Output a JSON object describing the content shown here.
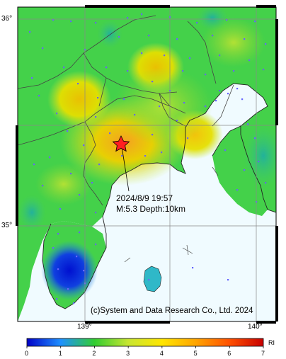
{
  "map": {
    "lat_labels": [
      "36°",
      "35°"
    ],
    "lon_labels": [
      "139°",
      "140°"
    ],
    "event": {
      "datetime": "2024/8/9 19:57",
      "details": "M:5.3 Depth:10km"
    },
    "copyright": "(c)System and Data Research Co., Ltd. 2024"
  },
  "legend": {
    "ticks": [
      "0",
      "1",
      "2",
      "3",
      "4",
      "5",
      "6",
      "7"
    ],
    "unit": "RI",
    "colors": [
      "#0000c8",
      "#1e90ff",
      "#32cd32",
      "#c8e632",
      "#ffe600",
      "#ffa500",
      "#ff5000",
      "#c80000"
    ]
  },
  "colors": {
    "sea": "#f0fbff",
    "land_base": "#44d14a",
    "epicenter": "#ff2020"
  }
}
